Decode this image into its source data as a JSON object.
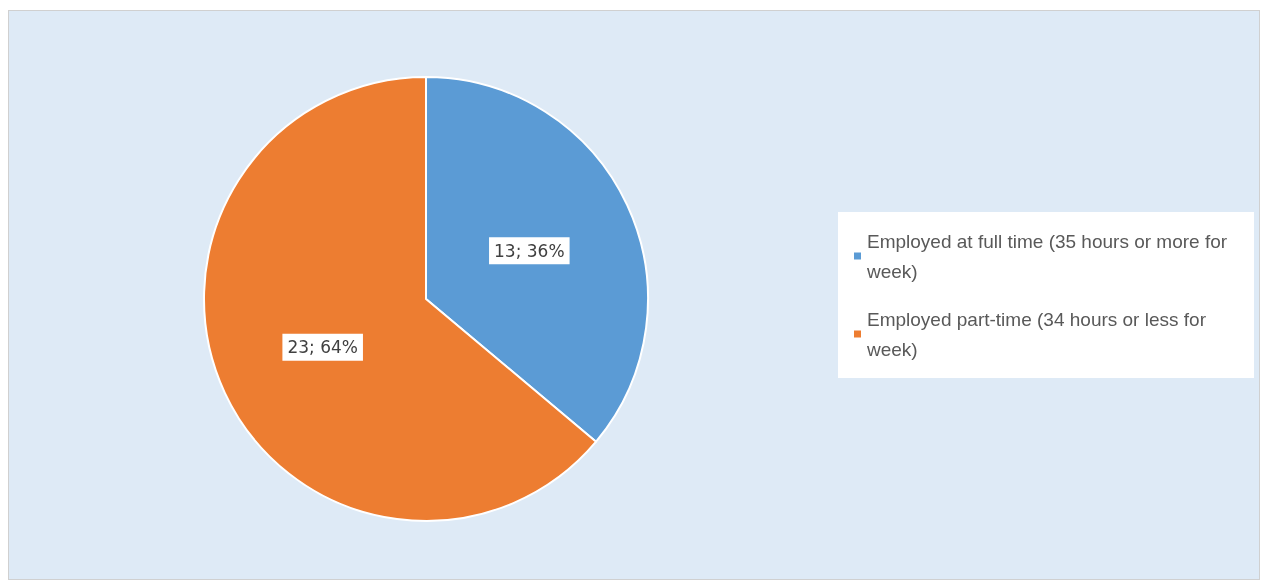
{
  "chart_data": {
    "type": "pie",
    "categories": [
      "Employed at full time (35 hours or more for week)",
      "Employed part-time (34 hours or less for week)"
    ],
    "values": [
      13,
      23
    ],
    "value_labels": [
      "13; 36%",
      "23; 64%"
    ],
    "colors": [
      "#5b9bd5",
      "#ed7d31"
    ],
    "legend": "right"
  }
}
